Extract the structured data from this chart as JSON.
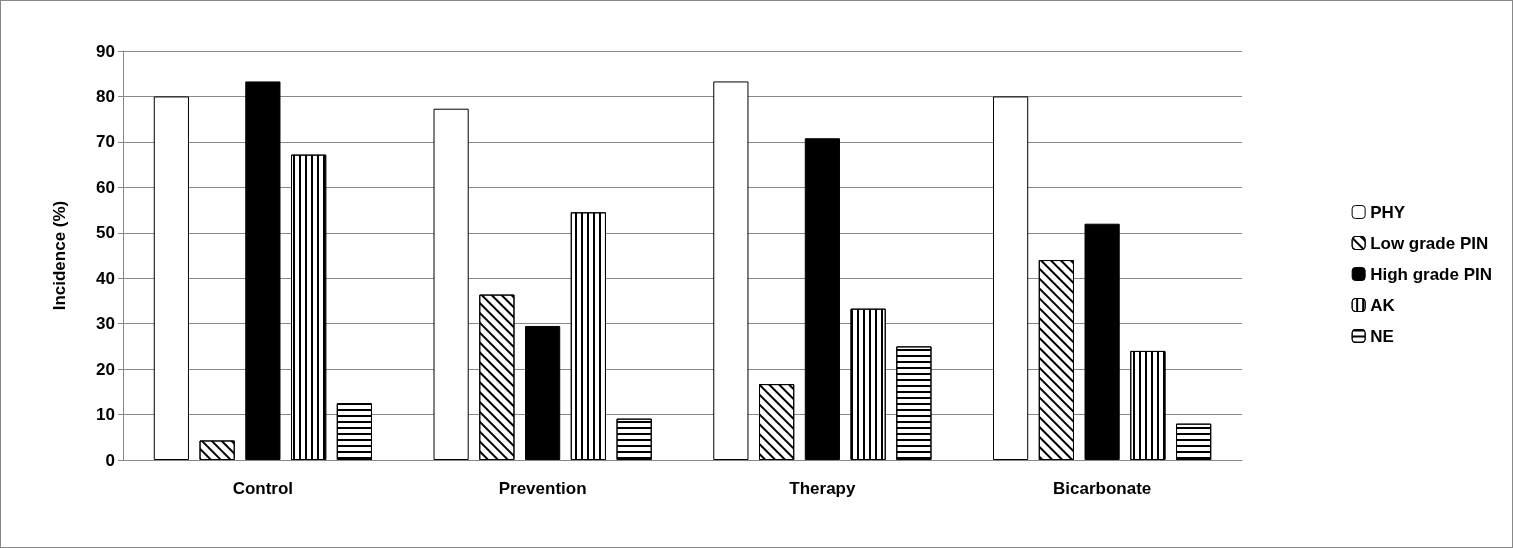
{
  "chart_data": {
    "type": "bar",
    "ylabel": "Incidence (%)",
    "categories": [
      "Control",
      "Prevention",
      "Therapy",
      "Bicarbonate"
    ],
    "series": [
      {
        "name": "PHY",
        "color": "#ffffff",
        "values": [
          80,
          77.3,
          83.3,
          80
        ]
      },
      {
        "name": "Low grade PIN",
        "color": "#ffffff",
        "values": [
          4.3,
          36.4,
          16.7,
          44
        ]
      },
      {
        "name": "High grade PIN",
        "color": "#000000",
        "values": [
          83.3,
          29.5,
          70.8,
          52
        ]
      },
      {
        "name": "AK",
        "color": "#ffffff",
        "values": [
          67.2,
          54.5,
          33.3,
          24
        ]
      },
      {
        "name": "NE",
        "color": "#ffffff",
        "values": [
          12.5,
          9.1,
          25,
          8
        ]
      }
    ],
    "ylim": [
      0,
      90
    ],
    "yticks": [
      0,
      10,
      20,
      30,
      40,
      50,
      60,
      70,
      80,
      90
    ],
    "grid": "y",
    "legend": "right"
  }
}
